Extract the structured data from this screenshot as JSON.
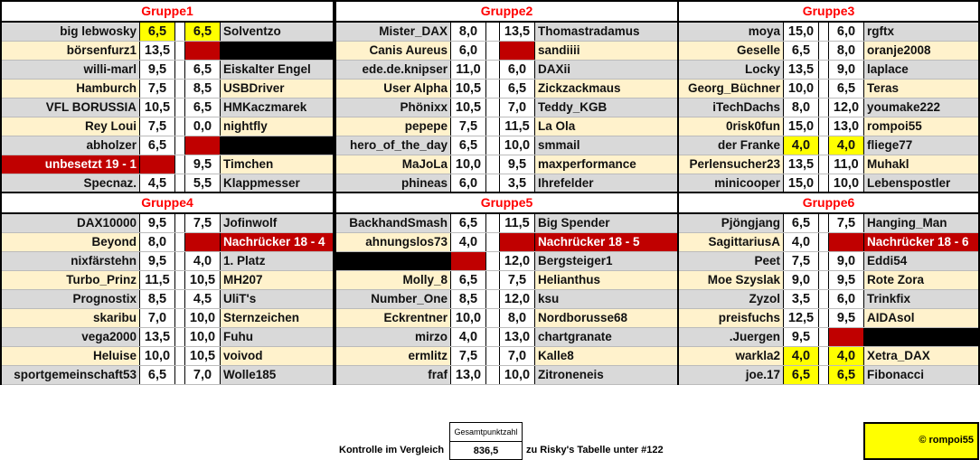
{
  "colors": {
    "row_gray": "#d9d9d9",
    "row_beige": "#fff2cc",
    "header_red": "#ff0000",
    "highlight_yellow": "#ffff00",
    "highlight_red": "#c00000",
    "highlight_black": "#000000"
  },
  "groups": [
    {
      "title": "Gruppe1",
      "rows": [
        {
          "l": "big lebwosky",
          "ls": "6,5",
          "lsh": "yellow",
          "rs": "6,5",
          "rsh": "yellow",
          "r": "Solventzo"
        },
        {
          "l": "börsenfurz1",
          "ls": "13,5",
          "rs": "",
          "rsh": "red",
          "r": "",
          "rh": "black"
        },
        {
          "l": "willi-marl",
          "ls": "9,5",
          "rs": "6,5",
          "r": "Eiskalter Engel"
        },
        {
          "l": "Hamburch",
          "ls": "7,5",
          "rs": "8,5",
          "r": "USBDriver"
        },
        {
          "l": "VFL BORUSSIA",
          "ls": "10,5",
          "rs": "6,5",
          "r": "HMKaczmarek"
        },
        {
          "l": "Rey Loui",
          "ls": "7,5",
          "rs": "0,0",
          "r": "nightfly"
        },
        {
          "l": "abholzer",
          "ls": "6,5",
          "rs": "",
          "rsh": "red",
          "r": "",
          "rh": "black"
        },
        {
          "l": "unbesetzt 19 - 1",
          "lh": "red",
          "ls": "",
          "lsh": "red",
          "rs": "9,5",
          "r": "Timchen"
        },
        {
          "l": "Specnaz.",
          "ls": "4,5",
          "rs": "5,5",
          "r": "Klappmesser"
        }
      ]
    },
    {
      "title": "Gruppe2",
      "rows": [
        {
          "l": "Mister_DAX",
          "ls": "8,0",
          "rs": "13,5",
          "r": "Thomastradamus"
        },
        {
          "l": "Canis Aureus",
          "ls": "6,0",
          "rs": "",
          "rsh": "red",
          "r": "sandiiii"
        },
        {
          "l": "ede.de.knipser",
          "ls": "11,0",
          "rs": "6,0",
          "r": "DAXii"
        },
        {
          "l": "User Alpha",
          "ls": "10,5",
          "rs": "6,5",
          "r": "Zickzackmaus"
        },
        {
          "l": "Phönixx",
          "ls": "10,5",
          "rs": "7,0",
          "r": "Teddy_KGB"
        },
        {
          "l": "pepepe",
          "ls": "7,5",
          "rs": "11,5",
          "r": "La Ola"
        },
        {
          "l": "hero_of_the_day",
          "ls": "6,5",
          "rs": "10,0",
          "r": "smmail"
        },
        {
          "l": "MaJoLa",
          "ls": "10,0",
          "rs": "9,5",
          "r": "maxperformance"
        },
        {
          "l": "phineas",
          "ls": "6,0",
          "rs": "3,5",
          "r": "Ihrefelder"
        }
      ]
    },
    {
      "title": "Gruppe3",
      "rows": [
        {
          "l": "moya",
          "ls": "15,0",
          "rs": "6,0",
          "r": "rgftx"
        },
        {
          "l": "Geselle",
          "ls": "6,5",
          "rs": "8,0",
          "r": "oranje2008"
        },
        {
          "l": "Locky",
          "ls": "13,5",
          "rs": "9,0",
          "r": "laplace"
        },
        {
          "l": "Georg_Büchner",
          "ls": "10,0",
          "rs": "6,5",
          "r": "Teras"
        },
        {
          "l": "iTechDachs",
          "ls": "8,0",
          "rs": "12,0",
          "r": "youmake222"
        },
        {
          "l": "0risk0fun",
          "ls": "15,0",
          "rs": "13,0",
          "r": "rompoi55"
        },
        {
          "l": "der Franke",
          "ls": "4,0",
          "lsh": "yellow",
          "rs": "4,0",
          "rsh": "yellow",
          "r": "fliege77"
        },
        {
          "l": "Perlensucher23",
          "ls": "13,5",
          "rs": "11,0",
          "r": "Muhakl"
        },
        {
          "l": "minicooper",
          "ls": "15,0",
          "rs": "10,0",
          "r": "Lebenspostler"
        }
      ]
    },
    {
      "title": "Gruppe4",
      "rows": [
        {
          "l": "DAX10000",
          "ls": "9,5",
          "rs": "7,5",
          "r": "Jofinwolf"
        },
        {
          "l": "Beyond",
          "ls": "8,0",
          "rs": "",
          "rsh": "red",
          "r": "Nachrücker 18 - 4",
          "rh": "red"
        },
        {
          "l": "nixfärstehn",
          "ls": "9,5",
          "rs": "4,0",
          "r": "1. Platz"
        },
        {
          "l": "Turbo_Prinz",
          "ls": "11,5",
          "rs": "10,5",
          "r": "MH207"
        },
        {
          "l": "Prognostix",
          "ls": "8,5",
          "rs": "4,5",
          "r": "UliT's"
        },
        {
          "l": "skaribu",
          "ls": "7,0",
          "rs": "10,0",
          "r": "Sternzeichen"
        },
        {
          "l": "vega2000",
          "ls": "13,5",
          "rs": "10,0",
          "r": "Fuhu"
        },
        {
          "l": "Heluise",
          "ls": "10,0",
          "rs": "10,5",
          "r": "voivod"
        },
        {
          "l": "sportgemeinschaft53",
          "ls": "6,5",
          "rs": "7,0",
          "r": "Wolle185"
        }
      ]
    },
    {
      "title": "Gruppe5",
      "rows": [
        {
          "l": "BackhandSmash",
          "ls": "6,5",
          "rs": "11,5",
          "r": "Big Spender"
        },
        {
          "l": "ahnungslos73",
          "ls": "4,0",
          "rs": "",
          "rsh": "red",
          "r": "Nachrücker 18 - 5",
          "rh": "red"
        },
        {
          "l": "",
          "lh": "black",
          "ls": "",
          "lsh": "red",
          "rs": "12,0",
          "r": "Bergsteiger1"
        },
        {
          "l": "Molly_8",
          "ls": "6,5",
          "rs": "7,5",
          "r": "Helianthus"
        },
        {
          "l": "Number_One",
          "ls": "8,5",
          "rs": "12,0",
          "r": "ksu"
        },
        {
          "l": "Eckrentner",
          "ls": "10,0",
          "rs": "8,0",
          "r": "Nordborusse68"
        },
        {
          "l": "mirzo",
          "ls": "4,0",
          "rs": "13,0",
          "r": "chartgranate"
        },
        {
          "l": "ermlitz",
          "ls": "7,5",
          "rs": "7,0",
          "r": "Kalle8"
        },
        {
          "l": "fraf",
          "ls": "13,0",
          "rs": "10,0",
          "r": "Zitroneneis"
        }
      ]
    },
    {
      "title": "Gruppe6",
      "rows": [
        {
          "l": "Pjöngjang",
          "ls": "6,5",
          "rs": "7,5",
          "r": "Hanging_Man"
        },
        {
          "l": "SagittariusA",
          "ls": "4,0",
          "rs": "",
          "rsh": "red",
          "r": "Nachrücker 18 - 6",
          "rh": "red"
        },
        {
          "l": "Peet",
          "ls": "7,5",
          "rs": "9,0",
          "r": "Eddi54"
        },
        {
          "l": "Moe Szyslak",
          "ls": "9,0",
          "rs": "9,5",
          "r": "Rote Zora"
        },
        {
          "l": "Zyzol",
          "ls": "3,5",
          "rs": "6,0",
          "r": "Trinkfix"
        },
        {
          "l": "preisfuchs",
          "ls": "12,5",
          "rs": "9,5",
          "r": "AIDAsol"
        },
        {
          "l": ".Juergen",
          "ls": "9,5",
          "rs": "",
          "rsh": "red",
          "r": "",
          "rh": "black"
        },
        {
          "l": "warkla2",
          "ls": "4,0",
          "lsh": "yellow",
          "rs": "4,0",
          "rsh": "yellow",
          "r": "Xetra_DAX"
        },
        {
          "l": "joe.17",
          "ls": "6,5",
          "lsh": "yellow",
          "rs": "6,5",
          "rsh": "yellow",
          "r": "Fibonacci"
        }
      ]
    }
  ],
  "footer": {
    "control_label": "Kontrolle im Vergleich",
    "total_header": "Gesamtpunktzahl",
    "total_value": "836,5",
    "reference_text": "zu Risky's Tabelle unter #122",
    "copyright": "© rompoi55"
  }
}
